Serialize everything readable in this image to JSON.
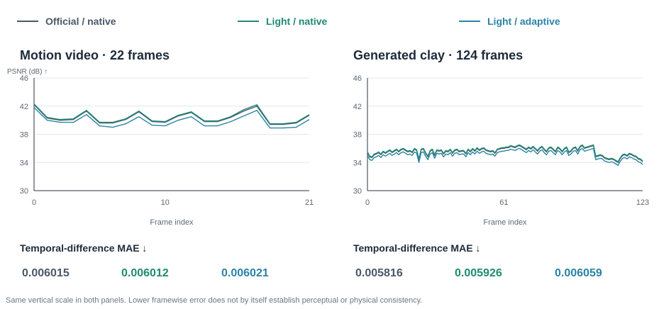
{
  "legend": [
    {
      "label": "Official / native",
      "color": "#4b5869"
    },
    {
      "label": "Light / native",
      "color": "#1f8a72"
    },
    {
      "label": "Light / adaptive",
      "color": "#2a83a6"
    }
  ],
  "panels": [
    {
      "title": "Motion video · 22 frames",
      "mae_title": "Temporal-difference MAE ↓",
      "mae_values": [
        "0.006015",
        "0.006012",
        "0.006021"
      ]
    },
    {
      "title": "Generated clay · 124 frames",
      "mae_title": "Temporal-difference MAE ↓",
      "mae_values": [
        "0.005816",
        "0.005926",
        "0.006059"
      ]
    }
  ],
  "footnote": "Same vertical scale in both panels. Lower framewise error does not by itself establish perceptual or physical consistency.",
  "chart_data": [
    {
      "type": "line",
      "title": "Motion video · 22 frames",
      "xlabel": "Frame index",
      "ylabel": "PSNR (dB) ↑",
      "xlim": [
        0,
        21
      ],
      "ylim": [
        30,
        46
      ],
      "xticks": [
        0,
        10,
        21
      ],
      "yticks": [
        30,
        34,
        38,
        42,
        46
      ],
      "x": [
        0,
        1,
        2,
        3,
        4,
        5,
        6,
        7,
        8,
        9,
        10,
        11,
        12,
        13,
        14,
        15,
        16,
        17,
        18,
        19,
        20,
        21
      ],
      "series": [
        {
          "name": "Official / native",
          "color": "#4b5869",
          "values": [
            42.2,
            40.3,
            40.0,
            40.1,
            41.3,
            39.6,
            39.6,
            40.1,
            41.2,
            39.8,
            39.7,
            40.6,
            41.1,
            39.8,
            39.8,
            40.4,
            41.3,
            42.0,
            39.4,
            39.4,
            39.6,
            40.7
          ]
        },
        {
          "name": "Light / native",
          "color": "#1f8a72",
          "values": [
            42.3,
            40.4,
            40.1,
            40.2,
            41.4,
            39.7,
            39.7,
            40.2,
            41.3,
            39.9,
            39.8,
            40.7,
            41.2,
            39.9,
            39.9,
            40.5,
            41.5,
            42.2,
            39.5,
            39.5,
            39.7,
            40.8
          ]
        },
        {
          "name": "Light / adaptive",
          "color": "#2a83a6",
          "values": [
            41.8,
            40.0,
            39.7,
            39.7,
            40.8,
            39.2,
            39.0,
            39.5,
            40.5,
            39.3,
            39.2,
            40.0,
            40.5,
            39.2,
            39.2,
            39.8,
            40.6,
            41.4,
            38.9,
            38.9,
            39.0,
            40.1
          ]
        }
      ]
    },
    {
      "type": "line",
      "title": "Generated clay · 124 frames",
      "xlabel": "Frame index",
      "ylabel": "",
      "xlim": [
        0,
        123
      ],
      "ylim": [
        30,
        46
      ],
      "xticks": [
        0,
        61,
        123
      ],
      "yticks": [
        30,
        34,
        38,
        42,
        46
      ],
      "x": [
        0,
        1,
        2,
        3,
        4,
        5,
        6,
        7,
        8,
        9,
        10,
        11,
        12,
        13,
        14,
        15,
        16,
        17,
        18,
        19,
        20,
        21,
        22,
        23,
        24,
        25,
        26,
        27,
        28,
        29,
        30,
        31,
        32,
        33,
        34,
        35,
        36,
        37,
        38,
        39,
        40,
        41,
        42,
        43,
        44,
        45,
        46,
        47,
        48,
        49,
        50,
        51,
        52,
        53,
        54,
        55,
        56,
        57,
        58,
        59,
        60,
        61,
        62,
        63,
        64,
        65,
        66,
        67,
        68,
        69,
        70,
        71,
        72,
        73,
        74,
        75,
        76,
        77,
        78,
        79,
        80,
        81,
        82,
        83,
        84,
        85,
        86,
        87,
        88,
        89,
        90,
        91,
        92,
        93,
        94,
        95,
        96,
        97,
        98,
        99,
        100,
        101,
        102,
        103,
        104,
        105,
        106,
        107,
        108,
        109,
        110,
        111,
        112,
        113,
        114,
        115,
        116,
        117,
        118,
        119,
        120,
        121,
        122,
        123
      ],
      "series": [
        {
          "name": "Official / native",
          "color": "#4b5869",
          "values": [
            35.4,
            34.8,
            34.7,
            35.1,
            35.2,
            35.4,
            35.1,
            35.5,
            35.3,
            35.5,
            35.7,
            35.4,
            35.6,
            35.8,
            35.5,
            35.8,
            35.9,
            35.7,
            35.5,
            35.6,
            35.4,
            35.9,
            35.7,
            34.4,
            35.8,
            35.9,
            35.3,
            34.8,
            35.6,
            35.8,
            35.0,
            35.7,
            35.6,
            35.7,
            35.2,
            35.6,
            35.5,
            35.8,
            35.3,
            35.7,
            35.8,
            35.5,
            35.6,
            35.6,
            35.2,
            35.8,
            35.5,
            35.9,
            35.6,
            36.0,
            35.7,
            35.9,
            36.0,
            35.7,
            35.6,
            35.5,
            35.6,
            35.3,
            35.8,
            35.9,
            36.0,
            36.0,
            36.1,
            36.1,
            36.3,
            36.2,
            36.1,
            36.3,
            36.4,
            36.2,
            36.0,
            35.8,
            36.1,
            35.9,
            36.2,
            35.9,
            35.6,
            36.0,
            36.2,
            35.8,
            35.5,
            36.0,
            36.1,
            35.8,
            35.5,
            36.1,
            35.9,
            35.5,
            35.9,
            36.1,
            35.4,
            35.6,
            36.0,
            36.1,
            35.6,
            36.2,
            36.4,
            36.0,
            36.1,
            36.2,
            36.3,
            36.4,
            34.8,
            34.9,
            35.0,
            34.9,
            34.6,
            34.5,
            34.4,
            34.5,
            34.4,
            34.2,
            34.0,
            34.6,
            35.0,
            35.1,
            34.9,
            35.2,
            35.1,
            34.9,
            34.8,
            34.5,
            34.4,
            34.1
          ]
        },
        {
          "name": "Light / native",
          "color": "#1f8a72",
          "values": [
            35.5,
            34.9,
            34.8,
            35.2,
            35.3,
            35.5,
            35.2,
            35.6,
            35.4,
            35.6,
            35.8,
            35.5,
            35.7,
            35.9,
            35.6,
            35.9,
            36.0,
            35.8,
            35.6,
            35.7,
            35.5,
            36.0,
            35.8,
            34.5,
            35.9,
            36.0,
            35.4,
            34.9,
            35.7,
            35.9,
            35.1,
            35.8,
            35.7,
            35.8,
            35.3,
            35.7,
            35.6,
            35.9,
            35.4,
            35.8,
            35.9,
            35.6,
            35.7,
            35.7,
            35.3,
            35.9,
            35.6,
            36.0,
            35.7,
            36.1,
            35.8,
            36.0,
            36.1,
            35.8,
            35.7,
            35.6,
            35.7,
            35.4,
            35.9,
            36.0,
            36.1,
            36.1,
            36.2,
            36.2,
            36.4,
            36.3,
            36.2,
            36.4,
            36.5,
            36.3,
            36.1,
            35.9,
            36.2,
            36.0,
            36.3,
            36.0,
            35.7,
            36.1,
            36.3,
            35.9,
            35.6,
            36.1,
            36.2,
            35.9,
            35.6,
            36.2,
            36.0,
            35.6,
            36.0,
            36.2,
            35.5,
            35.7,
            36.1,
            36.2,
            35.7,
            36.3,
            36.5,
            36.1,
            36.2,
            36.3,
            36.4,
            36.5,
            34.9,
            35.0,
            35.1,
            35.0,
            34.7,
            34.6,
            34.5,
            34.6,
            34.5,
            34.3,
            34.1,
            34.7,
            35.1,
            35.2,
            35.0,
            35.3,
            35.2,
            35.0,
            34.9,
            34.6,
            34.5,
            34.2
          ]
        },
        {
          "name": "Light / adaptive",
          "color": "#2a83a6",
          "values": [
            35.0,
            34.4,
            34.3,
            34.7,
            34.8,
            35.0,
            34.7,
            35.1,
            34.9,
            35.1,
            35.3,
            35.0,
            35.2,
            35.4,
            35.1,
            35.4,
            35.5,
            35.3,
            35.1,
            35.2,
            35.0,
            35.5,
            35.3,
            34.0,
            35.4,
            35.5,
            34.9,
            34.4,
            35.2,
            35.4,
            34.6,
            35.3,
            35.2,
            35.3,
            34.8,
            35.2,
            35.1,
            35.4,
            34.9,
            35.3,
            35.4,
            35.1,
            35.2,
            35.2,
            34.8,
            35.4,
            35.1,
            35.5,
            35.2,
            35.6,
            35.3,
            35.5,
            35.6,
            35.3,
            35.2,
            35.1,
            35.2,
            34.9,
            35.4,
            35.5,
            35.6,
            35.6,
            35.7,
            35.7,
            35.9,
            35.8,
            35.7,
            35.9,
            36.0,
            35.8,
            35.6,
            35.4,
            35.7,
            35.5,
            35.8,
            35.5,
            35.2,
            35.6,
            35.8,
            35.4,
            35.1,
            35.6,
            35.7,
            35.4,
            35.1,
            35.7,
            35.5,
            35.1,
            35.5,
            35.7,
            35.0,
            35.2,
            35.6,
            35.7,
            35.2,
            35.8,
            36.0,
            35.6,
            35.7,
            35.8,
            35.9,
            36.0,
            34.4,
            34.5,
            34.6,
            34.5,
            34.2,
            34.1,
            34.0,
            34.1,
            34.0,
            33.8,
            33.6,
            34.2,
            34.6,
            34.7,
            34.5,
            34.8,
            34.7,
            34.5,
            34.4,
            34.1,
            34.0,
            33.7
          ]
        }
      ]
    }
  ]
}
